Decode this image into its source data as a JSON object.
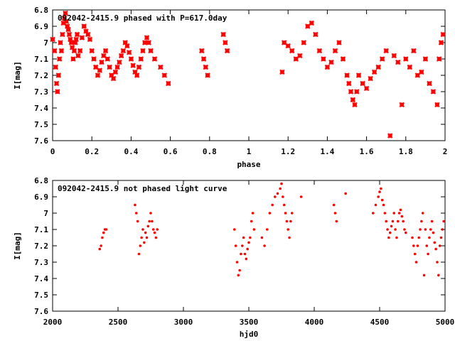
{
  "chart_data": [
    {
      "type": "scatter",
      "title": "092042-2415.9 phased with P=617.0day",
      "xlabel": "phase",
      "ylabel": "I[mag]",
      "xlim": [
        0,
        2
      ],
      "ylim": [
        7.6,
        6.8
      ],
      "y_inverted": true,
      "grid": false,
      "x_ticks": [
        "0",
        "0.2",
        "0.4",
        "0.6",
        "0.8",
        "1",
        "1.2",
        "1.4",
        "1.6",
        "1.8",
        "2"
      ],
      "y_ticks": [
        "6.8",
        "6.9",
        "7",
        "7.1",
        "7.2",
        "7.3",
        "7.4",
        "7.5",
        "7.6"
      ],
      "marker_color": "#ff0000",
      "marker": "star",
      "series": [
        {
          "x": [
            0.0,
            0.01,
            0.015,
            0.02,
            0.025,
            0.03,
            0.035,
            0.04,
            0.045,
            0.05,
            0.055,
            0.06,
            0.065,
            0.07,
            0.075,
            0.08,
            0.085,
            0.09,
            0.095,
            0.1,
            0.105,
            0.11,
            0.115,
            0.12,
            0.125,
            0.13,
            0.14,
            0.15,
            0.16,
            0.17,
            0.18,
            0.19,
            0.2,
            0.21,
            0.22,
            0.23,
            0.24,
            0.25,
            0.26,
            0.27,
            0.28,
            0.29,
            0.3,
            0.31,
            0.32,
            0.33,
            0.34,
            0.35,
            0.36,
            0.37,
            0.38,
            0.39,
            0.4,
            0.41,
            0.42,
            0.43,
            0.44,
            0.45,
            0.46,
            0.47,
            0.48,
            0.49,
            0.5,
            0.52,
            0.55,
            0.57,
            0.59,
            0.76,
            0.77,
            0.78,
            0.79,
            0.87,
            0.88,
            0.89,
            1.17,
            1.18,
            1.2,
            1.22,
            1.24,
            1.26,
            1.28,
            1.3,
            1.32,
            1.34,
            1.36,
            1.38,
            1.4,
            1.42,
            1.44,
            1.46,
            1.48,
            1.5,
            1.51,
            1.52,
            1.53,
            1.54,
            1.55,
            1.56,
            1.58,
            1.6,
            1.62,
            1.64,
            1.66,
            1.68,
            1.7,
            1.72,
            1.74,
            1.76,
            1.78,
            1.8,
            1.82,
            1.84,
            1.86,
            1.88,
            1.9,
            1.92,
            1.94,
            1.96,
            1.97,
            1.98,
            1.99
          ],
          "y": [
            6.98,
            7.05,
            7.15,
            7.25,
            7.3,
            7.2,
            7.1,
            7.0,
            7.05,
            6.95,
            6.88,
            6.85,
            6.82,
            6.87,
            6.9,
            6.92,
            6.95,
            6.98,
            7.0,
            7.03,
            7.1,
            7.05,
            7.0,
            6.98,
            6.95,
            7.08,
            7.05,
            6.97,
            6.9,
            6.93,
            6.95,
            6.98,
            7.05,
            7.1,
            7.15,
            7.2,
            7.17,
            7.12,
            7.08,
            7.05,
            7.1,
            7.15,
            7.2,
            7.22,
            7.18,
            7.15,
            7.12,
            7.08,
            7.05,
            7.0,
            7.02,
            7.06,
            7.1,
            7.14,
            7.18,
            7.2,
            7.15,
            7.1,
            7.05,
            7.0,
            6.97,
            7.0,
            7.05,
            7.1,
            7.15,
            7.2,
            7.25,
            7.05,
            7.1,
            7.15,
            7.2,
            6.95,
            7.0,
            7.05,
            7.18,
            7.0,
            7.02,
            7.05,
            7.1,
            7.08,
            7.0,
            6.9,
            6.88,
            6.95,
            7.05,
            7.1,
            7.15,
            7.12,
            7.05,
            7.0,
            7.1,
            7.2,
            7.25,
            7.3,
            7.35,
            7.38,
            7.3,
            7.2,
            7.25,
            7.28,
            7.22,
            7.18,
            7.15,
            7.1,
            7.05,
            7.57,
            7.08,
            7.12,
            7.38,
            7.1,
            7.15,
            7.05,
            7.2,
            7.18,
            7.1,
            7.25,
            7.3,
            7.38,
            7.1,
            7.0,
            6.95
          ]
        }
      ]
    },
    {
      "type": "scatter",
      "title": "092042-2415.9 not phased light curve",
      "xlabel": "hjd0",
      "ylabel": "I[mag]",
      "xlim": [
        2000,
        5000
      ],
      "ylim": [
        7.6,
        6.8
      ],
      "y_inverted": true,
      "grid": false,
      "x_ticks": [
        "2000",
        "2500",
        "3000",
        "3500",
        "4000",
        "4500",
        "5000"
      ],
      "y_ticks": [
        "6.8",
        "6.9",
        "7",
        "7.1",
        "7.2",
        "7.3",
        "7.4",
        "7.5",
        "7.6"
      ],
      "marker_color": "#ff0000",
      "marker": "dot",
      "series": [
        {
          "x": [
            2360,
            2370,
            2380,
            2390,
            2400,
            2410,
            2630,
            2640,
            2650,
            2660,
            2670,
            2680,
            2690,
            2700,
            2710,
            2720,
            2730,
            2740,
            2750,
            2760,
            2770,
            2780,
            2790,
            2800,
            3390,
            3400,
            3410,
            3420,
            3430,
            3440,
            3450,
            3460,
            3470,
            3480,
            3490,
            3500,
            3510,
            3520,
            3530,
            3540,
            3600,
            3620,
            3640,
            3660,
            3680,
            3700,
            3720,
            3740,
            3750,
            3760,
            3770,
            3780,
            3790,
            3800,
            3810,
            3820,
            3830,
            3900,
            4150,
            4160,
            4170,
            4240,
            4450,
            4470,
            4490,
            4500,
            4510,
            4520,
            4530,
            4540,
            4550,
            4560,
            4570,
            4580,
            4590,
            4600,
            4610,
            4620,
            4630,
            4640,
            4650,
            4660,
            4670,
            4680,
            4690,
            4700,
            4750,
            4760,
            4770,
            4780,
            4790,
            4800,
            4810,
            4820,
            4830,
            4840,
            4850,
            4860,
            4870,
            4880,
            4890,
            4900,
            4910,
            4920,
            4930,
            4940,
            4950,
            4960,
            4970,
            4980,
            4990
          ],
          "y": [
            7.22,
            7.2,
            7.15,
            7.12,
            7.1,
            7.1,
            6.95,
            7.0,
            7.05,
            7.25,
            7.2,
            7.15,
            7.1,
            7.18,
            7.12,
            7.15,
            7.08,
            7.05,
            7.0,
            7.05,
            7.1,
            7.12,
            7.15,
            7.1,
            7.1,
            7.2,
            7.3,
            7.38,
            7.35,
            7.25,
            7.2,
            7.15,
            7.25,
            7.28,
            7.22,
            7.18,
            7.15,
            7.05,
            7.0,
            7.1,
            7.15,
            7.2,
            7.1,
            7.0,
            6.95,
            6.9,
            6.88,
            6.85,
            6.82,
            6.9,
            6.95,
            7.0,
            7.05,
            7.1,
            7.15,
            7.05,
            7.0,
            6.9,
            6.95,
            7.0,
            7.05,
            6.88,
            7.0,
            6.95,
            6.9,
            6.87,
            6.85,
            6.92,
            6.95,
            7.0,
            7.05,
            7.1,
            7.15,
            7.12,
            7.08,
            7.05,
            7.0,
            7.1,
            7.15,
            7.05,
            7.0,
            6.98,
            7.02,
            7.05,
            7.1,
            7.12,
            7.15,
            7.2,
            7.25,
            7.3,
            7.2,
            7.15,
            7.1,
            7.05,
            7.0,
            7.38,
            7.1,
            7.2,
            7.25,
            7.15,
            7.1,
            7.05,
            7.12,
            7.18,
            7.22,
            7.3,
            7.38,
            7.2,
            7.15,
            7.1,
            7.05
          ]
        }
      ]
    }
  ]
}
